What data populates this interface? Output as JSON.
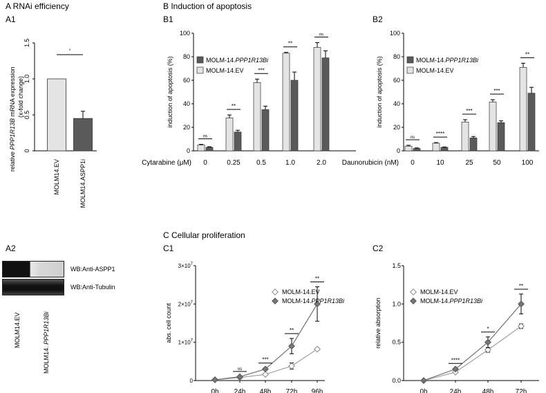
{
  "headers": {
    "A": "A   RNAi efficiency",
    "A1": "A1",
    "A2": "A2",
    "B": "B   Induction of apoptosis",
    "B1": "B1",
    "B2": "B2",
    "C": "C   Cellular proliferation",
    "C1": "C1",
    "C2": "C2"
  },
  "blot": {
    "row1": "WB:Anti-ASPP1",
    "row2": "WB:Anti-Tubulin",
    "lane1": "MOLM14.EV",
    "lane2_prefix": "MOLM14. ",
    "lane2_gene": "PPP1R13Bi"
  },
  "colors": {
    "light": "#e4e4e4",
    "dark": "#5a5a5a",
    "open_marker": "#ffffff",
    "filled_marker": "#777777"
  },
  "chart_data": [
    {
      "id": "A1",
      "type": "bar",
      "ylabel_line1_prefix": "relative ",
      "ylabel_line1_gene": "PPP1R13B",
      "ylabel_line1_suffix": " mRNA expression",
      "ylabel_line2": "(x-fold change)",
      "ylim": [
        0,
        1.5
      ],
      "yticks": [
        "0",
        "0.5",
        "1.0",
        "1.5"
      ],
      "categories": [
        "MOLM14.EV",
        "MOLM14.ASPP1i"
      ],
      "values": [
        1.0,
        0.45
      ],
      "errors": [
        0,
        0.1
      ],
      "significance": [
        {
          "from": 0,
          "to": 1,
          "label": "*"
        }
      ]
    },
    {
      "id": "B1",
      "type": "bar",
      "ylabel": "induction of apoptosis (%)",
      "xlabel": "Cytarabine (μM)",
      "ylim": [
        0,
        100
      ],
      "yticks": [
        "0",
        "20",
        "40",
        "60",
        "80",
        "100"
      ],
      "categories": [
        "0",
        "0.25",
        "0.5",
        "1.0",
        "2.0"
      ],
      "series": [
        {
          "name": "MOLM-14.EV",
          "values": [
            5,
            28,
            58,
            83,
            88
          ],
          "errors": [
            0.5,
            2.5,
            3,
            0.7,
            4
          ]
        },
        {
          "name": "MOLM-14.PPP1R13Bi",
          "name_prefix": "MOLM-14.",
          "name_gene": "PPP1R13Bi",
          "values": [
            3,
            16,
            35,
            60,
            79
          ],
          "errors": [
            0.5,
            1.5,
            3,
            7,
            6
          ]
        }
      ],
      "significance": [
        "ns",
        "**",
        "***",
        "**",
        "ns"
      ],
      "legend": "top-left"
    },
    {
      "id": "B2",
      "type": "bar",
      "ylabel": "induction of apoptosis (%)",
      "xlabel": "Daunorubicin (nM)",
      "ylim": [
        0,
        100
      ],
      "yticks": [
        "0",
        "20",
        "40",
        "60",
        "80",
        "100"
      ],
      "categories": [
        "0",
        "10",
        "25",
        "50",
        "100"
      ],
      "series": [
        {
          "name": "MOLM-14.EV",
          "values": [
            4,
            6.5,
            24.5,
            41.5,
            71
          ],
          "errors": [
            0.7,
            0.5,
            2,
            2,
            3.5
          ]
        },
        {
          "name": "MOLM-14.PPP1R13Bi",
          "name_prefix": "MOLM-14.",
          "name_gene": "PPP1R13Bi",
          "values": [
            2,
            3,
            11,
            24,
            49
          ],
          "errors": [
            0.5,
            0.3,
            1.2,
            1.5,
            5
          ]
        }
      ],
      "significance": [
        "ns",
        "****",
        "***",
        "***",
        "**"
      ],
      "legend": "top-left"
    },
    {
      "id": "C1",
      "type": "line",
      "ylabel": "abs. cell count",
      "ylim": [
        0,
        30000000
      ],
      "yticks": [
        {
          "base": "0",
          "exp": ""
        },
        {
          "base": "1×10",
          "exp": "7"
        },
        {
          "base": "2×10",
          "exp": "7"
        },
        {
          "base": "3×10",
          "exp": "7"
        }
      ],
      "x": [
        "0h",
        "24h",
        "48h",
        "72h",
        "96h"
      ],
      "series": [
        {
          "name": "MOLM-14.EV",
          "values": [
            200000,
            800000,
            1600000,
            3800000,
            8200000
          ],
          "errors": [
            0,
            100000,
            200000,
            800000,
            300000
          ]
        },
        {
          "name": "MOLM-14.PPP1R13Bi",
          "name_prefix": "MOLM-14.",
          "name_gene": "PPP1R13Bi",
          "values": [
            200000,
            1000000,
            3000000,
            9000000,
            20000000
          ],
          "errors": [
            0,
            100000,
            300000,
            2000000,
            4500000
          ]
        }
      ],
      "significance": [
        "",
        "ns",
        "***",
        "**",
        "**"
      ],
      "legend": "top-left"
    },
    {
      "id": "C2",
      "type": "line",
      "ylabel": "relative absorption",
      "ylim": [
        0,
        1.5
      ],
      "yticks": [
        "0.0",
        "0.5",
        "1.0",
        "1.5"
      ],
      "x": [
        "0h",
        "24h",
        "48h",
        "72h"
      ],
      "series": [
        {
          "name": "MOLM-14.EV",
          "values": [
            0,
            0.11,
            0.4,
            0.71
          ],
          "errors": [
            0,
            0.01,
            0.03,
            0.03
          ]
        },
        {
          "name": "MOLM-14.PPP1R13Bi",
          "name_prefix": "MOLM-14.",
          "name_gene": "PPP1R13Bi",
          "values": [
            0,
            0.15,
            0.5,
            1.0
          ],
          "errors": [
            0,
            0.01,
            0.07,
            0.13
          ]
        }
      ],
      "significance": [
        "",
        "****",
        "*",
        "**"
      ],
      "legend": "top-left"
    }
  ]
}
